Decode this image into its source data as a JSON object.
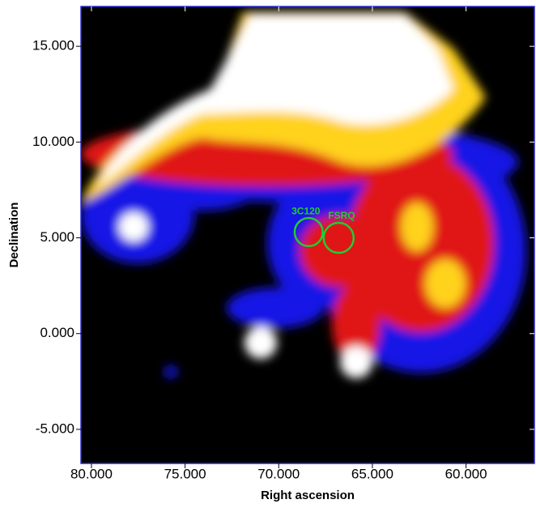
{
  "chart_data": {
    "type": "skymap",
    "x_label": "Right ascension",
    "y_label": "Declination",
    "xlim": [
      80.56,
      56.35
    ],
    "ylim": [
      -6.78,
      17.08
    ],
    "xticks": [
      {
        "value": 80,
        "label": "80.000"
      },
      {
        "value": 75,
        "label": "75.000"
      },
      {
        "value": 70,
        "label": "70.000"
      },
      {
        "value": 65,
        "label": "65.000"
      },
      {
        "value": 60,
        "label": "60.000"
      }
    ],
    "yticks": [
      {
        "value": -5,
        "label": "-5.000"
      },
      {
        "value": 0,
        "label": "0.000"
      },
      {
        "value": 5,
        "label": "5.000"
      },
      {
        "value": 10,
        "label": "10.000"
      },
      {
        "value": 15,
        "label": "15.000"
      }
    ],
    "annotations": [
      {
        "label": "3C120",
        "x": 68.4,
        "y": 5.3,
        "radius": 0.75,
        "color": "#22cc33"
      },
      {
        "label": "FSRQ",
        "x": 66.8,
        "y": 5.0,
        "radius": 0.8,
        "color": "#22cc33"
      }
    ]
  }
}
